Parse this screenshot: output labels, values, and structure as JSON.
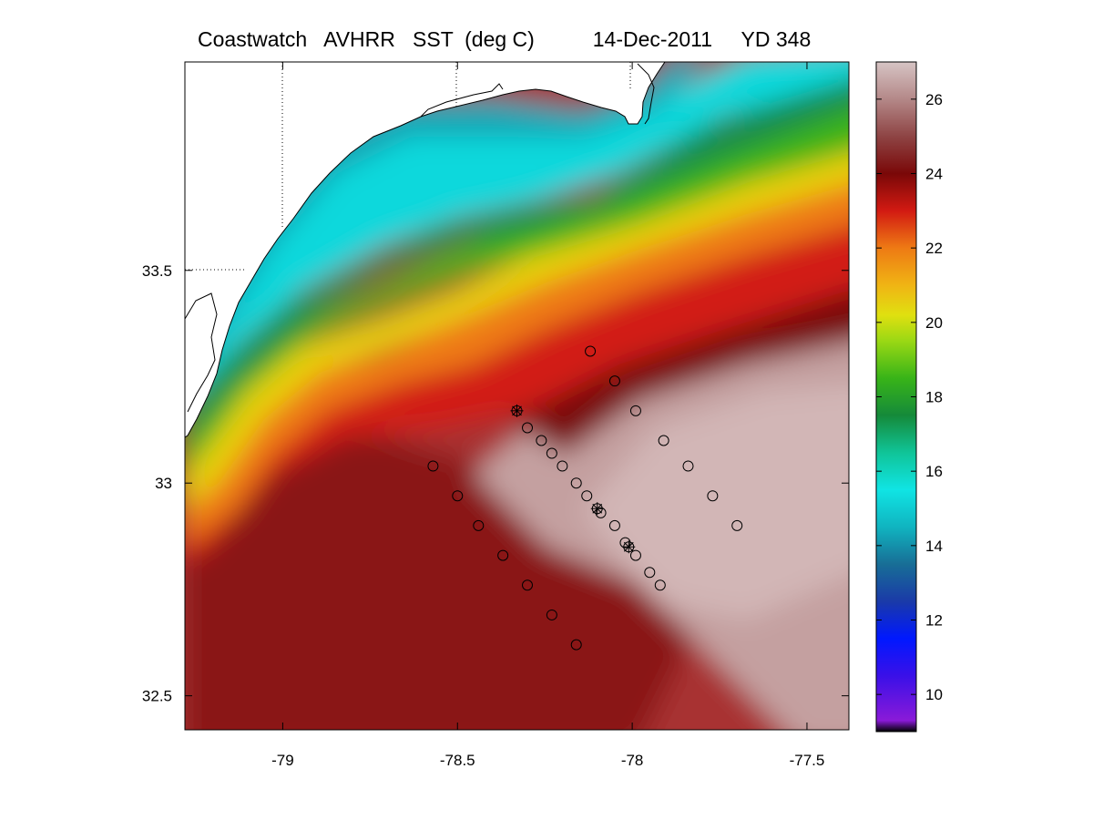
{
  "header": {
    "title": "Coastwatch   AVHRR   SST  (deg C)          14-Dec-2011     YD 348"
  },
  "map": {
    "x_ticks": [
      {
        "value": -79,
        "label": "-79"
      },
      {
        "value": -78.5,
        "label": "-78.5"
      },
      {
        "value": -78,
        "label": "-78"
      },
      {
        "value": -77.5,
        "label": "-77.5"
      }
    ],
    "y_ticks": [
      {
        "value": 33.5,
        "label": "33.5"
      },
      {
        "value": 33,
        "label": "33"
      },
      {
        "value": 32.5,
        "label": "32.5"
      }
    ],
    "lon_range": [
      -79.28,
      -77.38
    ],
    "lat_range": [
      32.42,
      33.99
    ],
    "stations_circle": [
      [
        -78.12,
        33.31
      ],
      [
        -78.05,
        33.24
      ],
      [
        -77.99,
        33.17
      ],
      [
        -77.91,
        33.1
      ],
      [
        -77.84,
        33.04
      ],
      [
        -77.77,
        32.97
      ],
      [
        -77.7,
        32.9
      ],
      [
        -78.3,
        33.13
      ],
      [
        -78.26,
        33.1
      ],
      [
        -78.23,
        33.07
      ],
      [
        -78.2,
        33.04
      ],
      [
        -78.16,
        33.0
      ],
      [
        -78.13,
        32.97
      ],
      [
        -78.09,
        32.93
      ],
      [
        -78.05,
        32.9
      ],
      [
        -78.02,
        32.86
      ],
      [
        -77.99,
        32.83
      ],
      [
        -77.95,
        32.79
      ],
      [
        -77.92,
        32.76
      ],
      [
        -78.57,
        33.04
      ],
      [
        -78.5,
        32.97
      ],
      [
        -78.44,
        32.9
      ],
      [
        -78.37,
        32.83
      ],
      [
        -78.3,
        32.76
      ],
      [
        -78.23,
        32.69
      ],
      [
        -78.16,
        32.62
      ]
    ],
    "stations_star": [
      [
        -78.33,
        33.17
      ],
      [
        -78.1,
        32.94
      ],
      [
        -78.01,
        32.85
      ]
    ]
  },
  "colorbar": {
    "min": 9,
    "max": 27,
    "ticks": [
      {
        "value": 26,
        "label": "26"
      },
      {
        "value": 24,
        "label": "24"
      },
      {
        "value": 22,
        "label": "22"
      },
      {
        "value": 20,
        "label": "20"
      },
      {
        "value": 18,
        "label": "18"
      },
      {
        "value": 16,
        "label": "16"
      },
      {
        "value": 14,
        "label": "14"
      },
      {
        "value": 12,
        "label": "12"
      },
      {
        "value": 10,
        "label": "10"
      }
    ],
    "stops": [
      {
        "value": 9,
        "color": "#000000"
      },
      {
        "value": 9.3,
        "color": "#8a1ad8"
      },
      {
        "value": 10.5,
        "color": "#3a10e8"
      },
      {
        "value": 11.5,
        "color": "#0018ff"
      },
      {
        "value": 12.5,
        "color": "#1a3aa8"
      },
      {
        "value": 13.5,
        "color": "#186e96"
      },
      {
        "value": 14.5,
        "color": "#10b4c0"
      },
      {
        "value": 15.5,
        "color": "#10e4e4"
      },
      {
        "value": 16.5,
        "color": "#10c498"
      },
      {
        "value": 17.5,
        "color": "#158a3a"
      },
      {
        "value": 18.5,
        "color": "#38b418"
      },
      {
        "value": 19.5,
        "color": "#9ad814"
      },
      {
        "value": 20.2,
        "color": "#e0e010"
      },
      {
        "value": 21,
        "color": "#f0b414"
      },
      {
        "value": 22,
        "color": "#ee7a14"
      },
      {
        "value": 23,
        "color": "#d21a12"
      },
      {
        "value": 24,
        "color": "#7a0808"
      },
      {
        "value": 25,
        "color": "#8e4444"
      },
      {
        "value": 26,
        "color": "#b48888"
      },
      {
        "value": 27,
        "color": "#d6c4c4"
      }
    ]
  }
}
